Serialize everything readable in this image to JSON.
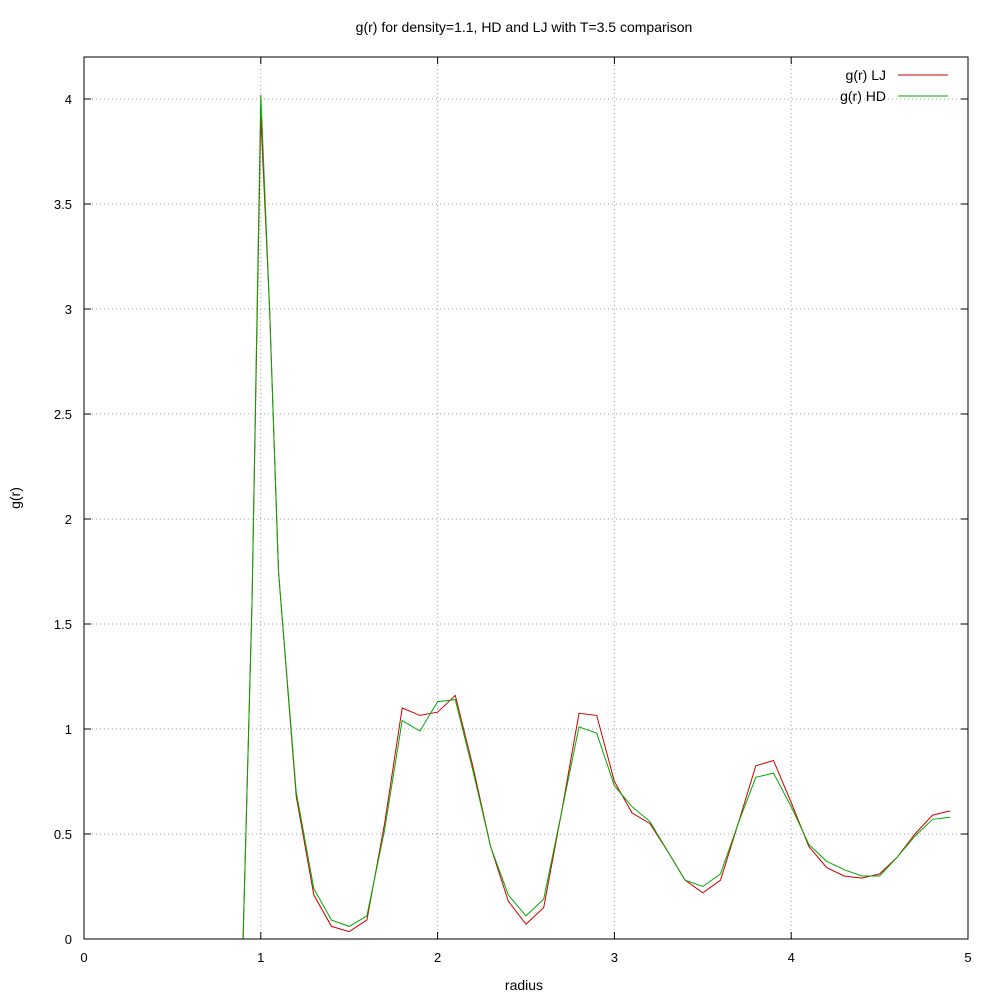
{
  "chart_data": {
    "type": "line",
    "title": "g(r) for density=1.1, HD and LJ with T=3.5 comparison",
    "xlabel": "radius",
    "ylabel": "g(r)",
    "xlim": [
      0,
      5
    ],
    "ylim": [
      0,
      4.2
    ],
    "xticks": [
      0,
      1,
      2,
      3,
      4,
      5
    ],
    "yticks": [
      0,
      0.5,
      1,
      1.5,
      2,
      2.5,
      3,
      3.5,
      4
    ],
    "grid": true,
    "legend_position": "top-right",
    "x": [
      0.9,
      0.95,
      1.0,
      1.05,
      1.1,
      1.2,
      1.3,
      1.4,
      1.5,
      1.6,
      1.7,
      1.8,
      1.9,
      2.0,
      2.1,
      2.2,
      2.3,
      2.4,
      2.5,
      2.6,
      2.7,
      2.8,
      2.9,
      3.0,
      3.1,
      3.2,
      3.3,
      3.4,
      3.5,
      3.6,
      3.7,
      3.8,
      3.9,
      4.0,
      4.1,
      4.2,
      4.3,
      4.4,
      4.5,
      4.6,
      4.7,
      4.8,
      4.9
    ],
    "series": [
      {
        "name": "g(r) LJ",
        "color": "#cc0000",
        "values": [
          0.0,
          1.6,
          3.92,
          3.0,
          1.75,
          0.68,
          0.21,
          0.06,
          0.035,
          0.09,
          0.55,
          1.1,
          1.065,
          1.08,
          1.16,
          0.82,
          0.44,
          0.18,
          0.07,
          0.15,
          0.6,
          1.075,
          1.065,
          0.75,
          0.6,
          0.55,
          0.42,
          0.28,
          0.22,
          0.28,
          0.55,
          0.825,
          0.85,
          0.65,
          0.44,
          0.34,
          0.3,
          0.29,
          0.31,
          0.39,
          0.5,
          0.59,
          0.61
        ]
      },
      {
        "name": "g(r) HD",
        "color": "#00aa00",
        "values": [
          0.0,
          1.6,
          4.02,
          3.0,
          1.75,
          0.7,
          0.24,
          0.09,
          0.06,
          0.11,
          0.52,
          1.04,
          0.99,
          1.13,
          1.14,
          0.8,
          0.44,
          0.21,
          0.11,
          0.19,
          0.6,
          1.01,
          0.98,
          0.73,
          0.63,
          0.56,
          0.42,
          0.28,
          0.25,
          0.31,
          0.55,
          0.77,
          0.79,
          0.63,
          0.45,
          0.37,
          0.33,
          0.3,
          0.3,
          0.39,
          0.49,
          0.57,
          0.58
        ]
      }
    ]
  }
}
